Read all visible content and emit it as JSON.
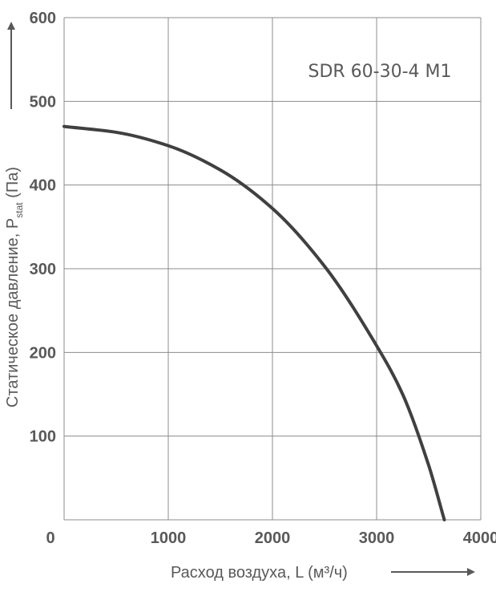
{
  "chart_data": {
    "type": "line",
    "title": "SDR 60-30-4 M1",
    "xlabel": "Расход воздуха, L (м³/ч)",
    "ylabel_main": "Статическое давление, P",
    "ylabel_sub": "stat",
    "ylabel_unit": " (Па)",
    "xlim": [
      0,
      4000
    ],
    "ylim": [
      0,
      600
    ],
    "grid": true,
    "x_ticks": [
      0,
      1000,
      2000,
      3000,
      4000
    ],
    "y_ticks": [
      100,
      200,
      300,
      400,
      500,
      600
    ],
    "series": [
      {
        "x": [
          0,
          500,
          1000,
          1500,
          2000,
          2500,
          3000,
          3250,
          3500,
          3650
        ],
        "y": [
          470,
          463,
          447,
          418,
          372,
          303,
          208,
          150,
          65,
          0
        ]
      }
    ]
  },
  "colors": {
    "curve": "#404040",
    "grid": "#8c8c8c",
    "text": "#595959",
    "arrow": "#595959"
  }
}
